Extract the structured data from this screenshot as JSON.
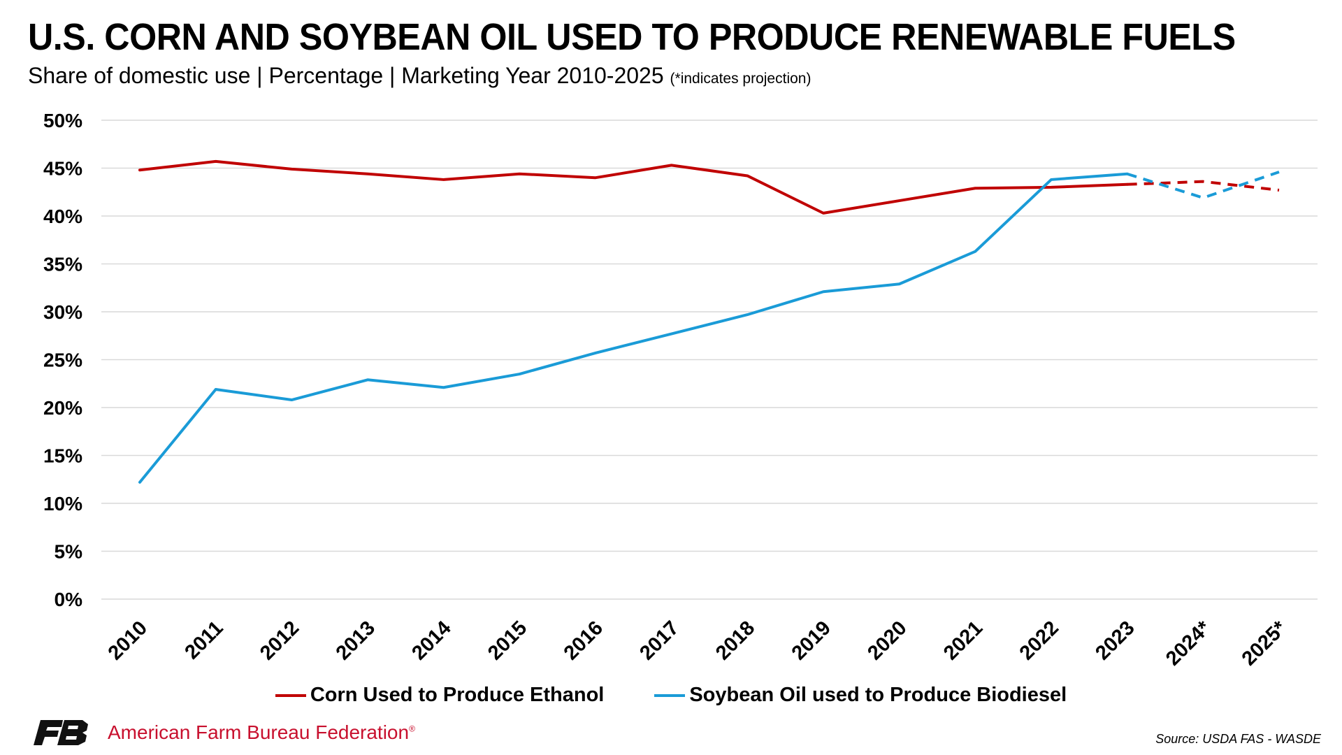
{
  "header": {
    "title": "U.S. CORN AND SOYBEAN OIL USED TO PRODUCE RENEWABLE FUELS",
    "subtitle": "Share of domestic use | Percentage | Marketing Year 2010-2025",
    "note": "(*indicates projection)"
  },
  "chart_data": {
    "type": "line",
    "categories": [
      "2010",
      "2011",
      "2012",
      "2013",
      "2014",
      "2015",
      "2016",
      "2017",
      "2018",
      "2019",
      "2020",
      "2021",
      "2022",
      "2023",
      "2024*",
      "2025*"
    ],
    "ylim": [
      0,
      50
    ],
    "yticks": [
      0,
      5,
      10,
      15,
      20,
      25,
      30,
      35,
      40,
      45,
      50
    ],
    "ytick_labels": [
      "0%",
      "5%",
      "10%",
      "15%",
      "20%",
      "25%",
      "30%",
      "35%",
      "40%",
      "45%",
      "50%"
    ],
    "grid": true,
    "legend_position": "bottom",
    "projection_start_index": 13,
    "series": [
      {
        "name": "Corn Used to Produce Ethanol",
        "color": "#c00000",
        "values": [
          44.8,
          45.7,
          44.9,
          44.4,
          43.8,
          44.4,
          44.0,
          45.3,
          44.2,
          40.3,
          41.6,
          42.9,
          43.0,
          43.3,
          43.6,
          42.7
        ]
      },
      {
        "name": "Soybean Oil used to Produce Biodiesel",
        "color": "#1a9bd7",
        "values": [
          12.2,
          21.9,
          20.8,
          22.9,
          22.1,
          23.5,
          25.7,
          27.7,
          29.7,
          32.1,
          32.9,
          36.3,
          43.8,
          44.4,
          41.9,
          44.6
        ]
      }
    ]
  },
  "footer": {
    "brand_name": "American Farm Bureau Federation",
    "brand_mark": "FB",
    "brand_reg": "®",
    "source": "Source: USDA FAS - WASDE"
  }
}
